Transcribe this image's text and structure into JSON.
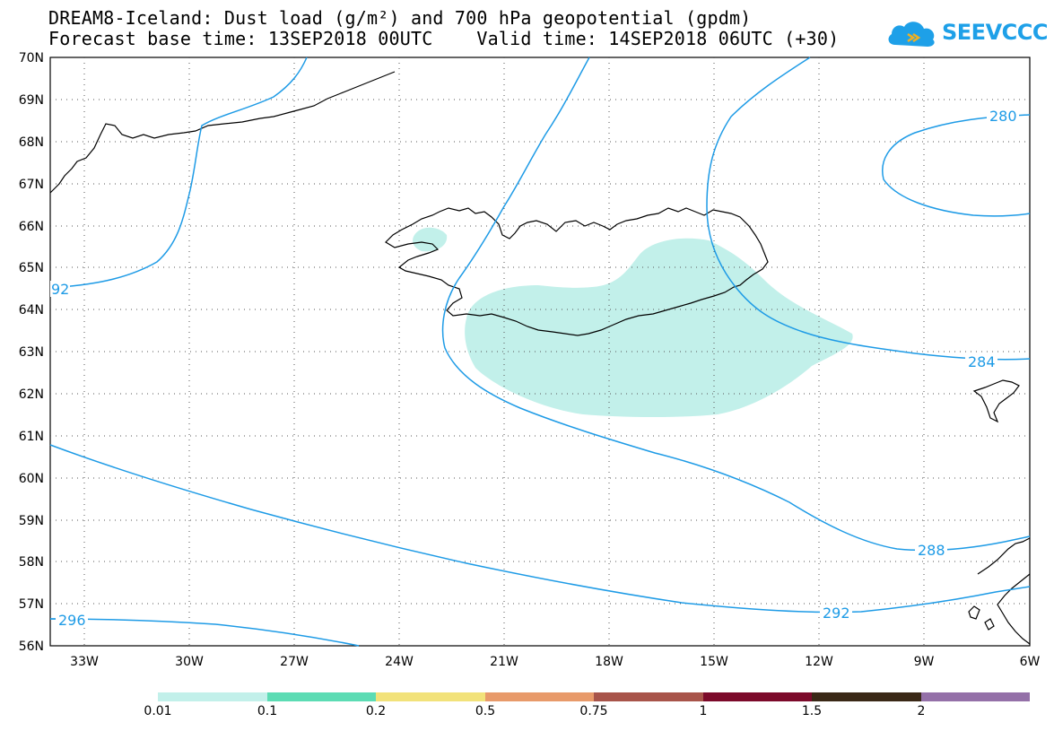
{
  "header": {
    "title_line1": "DREAM8-Iceland: Dust load (g/m²) and 700 hPa geopotential (gpdm)",
    "title_line2": "Forecast base time: 13SEP2018 00UTC    Valid time: 14SEP2018 06UTC (+30)"
  },
  "logo": {
    "text": "SEEVCCC",
    "color": "#1ea0e8",
    "icon": "cloud-logo-icon"
  },
  "map": {
    "lat_labels": [
      "70N",
      "69N",
      "68N",
      "67N",
      "66N",
      "65N",
      "64N",
      "63N",
      "62N",
      "61N",
      "60N",
      "59N",
      "58N",
      "57N",
      "56N"
    ],
    "lon_labels": [
      "33W",
      "30W",
      "27W",
      "24W",
      "21W",
      "18W",
      "15W",
      "12W",
      "9W",
      "6W"
    ],
    "contour_color": "#1e9be6",
    "dust_color": "#c2f0ea",
    "contour_labels": {
      "c280": "280",
      "c284": "284",
      "c288": "288",
      "c292a": "92",
      "c292b": "292",
      "c296": "296"
    }
  },
  "legend": {
    "colors": [
      "#c2f0ea",
      "#5cdcb4",
      "#f2e27a",
      "#e89a6a",
      "#a8544a",
      "#7c0a2a",
      "#3a2816",
      "#9470a8"
    ],
    "labels": [
      "0.01",
      "0.1",
      "0.2",
      "0.5",
      "0.75",
      "1",
      "1.5",
      "2"
    ]
  }
}
